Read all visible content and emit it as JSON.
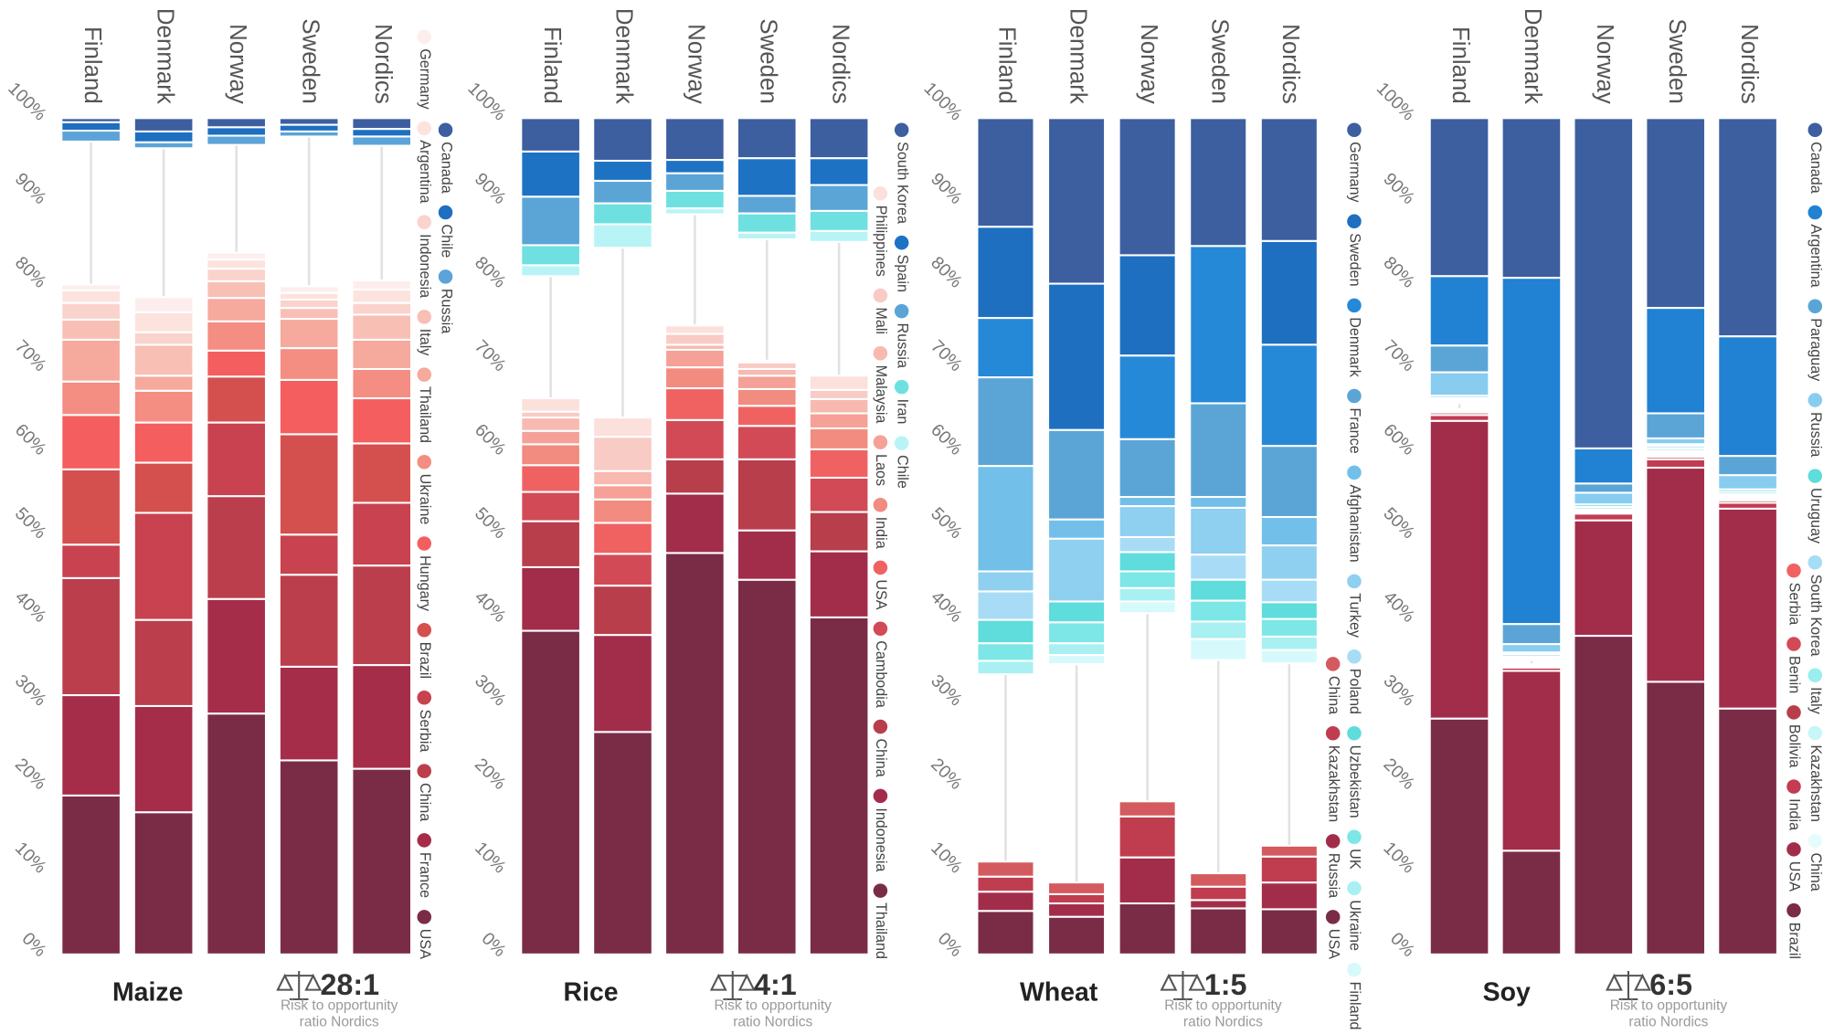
{
  "chart_data": [
    {
      "type": "bar",
      "stacked": true,
      "title": "Maize",
      "ratio": "28:1",
      "ratio_label_lines": [
        "Risk to opportunity",
        "ratio Nordics"
      ],
      "categories": [
        "Finland",
        "Denmark",
        "Norway",
        "Sweden",
        "Nordics"
      ],
      "ylim": [
        0,
        100
      ],
      "yticks": [
        {
          "value": 0,
          "label": "0%"
        },
        {
          "value": 10,
          "label": "10%"
        },
        {
          "value": 20,
          "label": "20%"
        },
        {
          "value": 30,
          "label": "30%"
        },
        {
          "value": 40,
          "label": "40%"
        },
        {
          "value": 50,
          "label": "50%"
        },
        {
          "value": 60,
          "label": "60%"
        },
        {
          "value": 70,
          "label": "70%"
        },
        {
          "value": 80,
          "label": "80%"
        },
        {
          "value": 90,
          "label": "90%"
        },
        {
          "value": 100,
          "label": "100%"
        }
      ],
      "series": [
        {
          "name": "Canada",
          "color": "#3d5fa0",
          "stack": "top",
          "values": [
            0.5,
            1.6,
            1.1,
            0.8,
            1.3
          ]
        },
        {
          "name": "Chile",
          "color": "#1e6fc0",
          "stack": "top",
          "values": [
            1,
            1.3,
            1,
            0.8,
            0.9
          ]
        },
        {
          "name": "Russia",
          "color": "#5ba3d8",
          "stack": "top",
          "values": [
            1.3,
            0.7,
            1.1,
            0.6,
            1.1
          ]
        },
        {
          "name": "Germany",
          "color": "#fdeeee",
          "stack": "bottom",
          "values": [
            0.7,
            1.8,
            0.8,
            0.8,
            1.1
          ]
        },
        {
          "name": "Argentina",
          "color": "#fce3de",
          "stack": "bottom",
          "values": [
            1.5,
            2.4,
            1.1,
            0.8,
            1.6
          ]
        },
        {
          "name": "Indonesia",
          "color": "#fad3cc",
          "stack": "bottom",
          "values": [
            2,
            1.5,
            1.5,
            1,
            1.4
          ]
        },
        {
          "name": "Italy",
          "color": "#f8bfb5",
          "stack": "bottom",
          "values": [
            2.4,
            3.7,
            2,
            1.3,
            3
          ]
        },
        {
          "name": "Thailand",
          "color": "#f6a99d",
          "stack": "bottom",
          "values": [
            5,
            1.8,
            2.8,
            3.5,
            3.5
          ]
        },
        {
          "name": "Ukraine",
          "color": "#f48d82",
          "stack": "bottom",
          "values": [
            4,
            3.8,
            3.5,
            3.8,
            3.5
          ]
        },
        {
          "name": "Hungary",
          "color": "#f45e5e",
          "stack": "bottom",
          "values": [
            6.5,
            4.8,
            3.1,
            6.5,
            5.4
          ]
        },
        {
          "name": "Brazil",
          "color": "#d4504f",
          "stack": "bottom",
          "values": [
            9,
            6,
            5.5,
            12,
            7.1
          ]
        },
        {
          "name": "Serbia",
          "color": "#c8424f",
          "stack": "bottom",
          "values": [
            4,
            12.8,
            8.8,
            4.8,
            7.5
          ]
        },
        {
          "name": "China",
          "color": "#bb3e4c",
          "stack": "bottom",
          "values": [
            14,
            10.3,
            12.3,
            11,
            11.9
          ]
        },
        {
          "name": "France",
          "color": "#a52d4a",
          "stack": "bottom",
          "values": [
            12,
            12.7,
            13.7,
            11.2,
            12.4
          ]
        },
        {
          "name": "USA",
          "color": "#7a2c47",
          "stack": "bottom",
          "values": [
            19,
            17,
            28.8,
            23.2,
            22.2
          ]
        }
      ]
    },
    {
      "type": "bar",
      "stacked": true,
      "title": "Rice",
      "ratio": "4:1",
      "ratio_label_lines": [
        "Risk to opportunity",
        "ratio Nordics"
      ],
      "categories": [
        "Finland",
        "Denmark",
        "Norway",
        "Sweden",
        "Nordics"
      ],
      "ylim": [
        0,
        100
      ],
      "yticks": [
        {
          "value": 0,
          "label": "0%"
        },
        {
          "value": 10,
          "label": "10%"
        },
        {
          "value": 20,
          "label": "20%"
        },
        {
          "value": 30,
          "label": "30%"
        },
        {
          "value": 40,
          "label": "40%"
        },
        {
          "value": 50,
          "label": "50%"
        },
        {
          "value": 60,
          "label": "60%"
        },
        {
          "value": 70,
          "label": "70%"
        },
        {
          "value": 80,
          "label": "80%"
        },
        {
          "value": 90,
          "label": "90%"
        },
        {
          "value": 100,
          "label": "100%"
        }
      ],
      "series": [
        {
          "name": "South Korea",
          "color": "#3d5fa0",
          "stack": "top",
          "values": [
            4,
            5.1,
            5,
            4.8,
            4.8
          ]
        },
        {
          "name": "Spain",
          "color": "#1e72c4",
          "stack": "top",
          "values": [
            5.4,
            2.4,
            1.6,
            4.5,
            3.2
          ]
        },
        {
          "name": "Russia",
          "color": "#5aa5d6",
          "stack": "top",
          "values": [
            5.8,
            2.7,
            2.1,
            2.1,
            3.1
          ]
        },
        {
          "name": "Iran",
          "color": "#6ee0e0",
          "stack": "top",
          "values": [
            2.4,
            2.5,
            2.1,
            2.3,
            2.4
          ]
        },
        {
          "name": "Chile",
          "color": "#b8f4f6",
          "stack": "top",
          "values": [
            1.3,
            2.8,
            0.7,
            0.8,
            1.3
          ]
        },
        {
          "name": "Philippines",
          "color": "#fbe0dc",
          "stack": "bottom",
          "values": [
            1.6,
            2.3,
            1,
            0.2,
            1.7
          ]
        },
        {
          "name": "Mali",
          "color": "#f9cbc5",
          "stack": "bottom",
          "values": [
            0.7,
            4.1,
            1.3,
            0.8,
            1.1
          ]
        },
        {
          "name": "Malaysia",
          "color": "#f7b9b0",
          "stack": "bottom",
          "values": [
            1.6,
            1.7,
            0.6,
            0.8,
            1.7
          ]
        },
        {
          "name": "Laos",
          "color": "#f5a197",
          "stack": "bottom",
          "values": [
            1.6,
            1.7,
            2.1,
            1.6,
            1.8
          ]
        },
        {
          "name": "India",
          "color": "#f28b80",
          "stack": "bottom",
          "values": [
            2.5,
            2.8,
            2.5,
            2,
            2.5
          ]
        },
        {
          "name": "USA",
          "color": "#f06262",
          "stack": "bottom",
          "values": [
            3.2,
            3.7,
            3.8,
            2.4,
            3.4
          ]
        },
        {
          "name": "Cambodia",
          "color": "#d24a55",
          "stack": "bottom",
          "values": [
            3.5,
            3.8,
            4.7,
            4,
            4.1
          ]
        },
        {
          "name": "China",
          "color": "#b83e4b",
          "stack": "bottom",
          "values": [
            5.5,
            5.9,
            4.1,
            8.5,
            4.7
          ]
        },
        {
          "name": "Indonesia",
          "color": "#a22d4a",
          "stack": "bottom",
          "values": [
            7.6,
            11.6,
            7.1,
            5.9,
            7.9
          ]
        },
        {
          "name": "Thailand",
          "color": "#7a2c47",
          "stack": "bottom",
          "values": [
            38.7,
            26.6,
            48,
            44.8,
            40.3
          ]
        }
      ]
    },
    {
      "type": "bar",
      "stacked": true,
      "title": "Wheat",
      "ratio": "1:5",
      "ratio_label_lines": [
        "Risk to opportunity",
        "ratio Nordics"
      ],
      "categories": [
        "Finland",
        "Denmark",
        "Norway",
        "Sweden",
        "Nordics"
      ],
      "ylim": [
        0,
        100
      ],
      "yticks": [
        {
          "value": 0,
          "label": "0%"
        },
        {
          "value": 10,
          "label": "10%"
        },
        {
          "value": 20,
          "label": "20%"
        },
        {
          "value": 30,
          "label": "30%"
        },
        {
          "value": 40,
          "label": "40%"
        },
        {
          "value": 50,
          "label": "50%"
        },
        {
          "value": 60,
          "label": "60%"
        },
        {
          "value": 70,
          "label": "70%"
        },
        {
          "value": 80,
          "label": "80%"
        },
        {
          "value": 90,
          "label": "90%"
        },
        {
          "value": 100,
          "label": "100%"
        }
      ],
      "series": [
        {
          "name": "Germany",
          "color": "#3d5fa0",
          "stack": "top",
          "values": [
            13,
            19.8,
            16.4,
            15.3,
            14.7
          ]
        },
        {
          "name": "Sweden",
          "color": "#1e6fc0",
          "stack": "top",
          "values": [
            10.9,
            17.5,
            12,
            0,
            12.4
          ]
        },
        {
          "name": "Denmark",
          "color": "#2589d8",
          "stack": "top",
          "values": [
            7.1,
            0,
            10,
            18.8,
            12.1
          ]
        },
        {
          "name": "France",
          "color": "#5ba5d6",
          "stack": "top",
          "values": [
            10.6,
            10.7,
            6.9,
            11.2,
            8.5
          ]
        },
        {
          "name": "Afghanistan",
          "color": "#72bfe9",
          "stack": "top",
          "values": [
            12.6,
            2.3,
            1.1,
            1.3,
            3.4
          ]
        },
        {
          "name": "Turkey",
          "color": "#8fcff0",
          "stack": "top",
          "values": [
            2.4,
            7.5,
            3.7,
            5.6,
            4.1
          ]
        },
        {
          "name": "Poland",
          "color": "#a8dcf6",
          "stack": "top",
          "values": [
            3.4,
            0,
            1.8,
            3,
            2.7
          ]
        },
        {
          "name": "Uzbekistan",
          "color": "#5fdcdc",
          "stack": "top",
          "values": [
            2.8,
            2.5,
            2.3,
            2.5,
            2
          ]
        },
        {
          "name": "UK",
          "color": "#7de6e6",
          "stack": "top",
          "values": [
            2.1,
            2.5,
            2,
            2.5,
            2.1
          ]
        },
        {
          "name": "Ukraine",
          "color": "#a9f0f2",
          "stack": "top",
          "values": [
            1.6,
            1.4,
            1.6,
            2.1,
            1.6
          ]
        },
        {
          "name": "Finland",
          "color": "#d6fafb",
          "stack": "top",
          "values": [
            0,
            1.1,
            1.4,
            2.5,
            1.6
          ]
        },
        {
          "name": "China",
          "color": "#d35a5e",
          "stack": "bottom",
          "values": [
            1.8,
            1.4,
            1.8,
            1.6,
            1.3
          ]
        },
        {
          "name": "Kazakhstan",
          "color": "#c03d4f",
          "stack": "bottom",
          "values": [
            1.8,
            1.1,
            4.9,
            1.6,
            3.1
          ]
        },
        {
          "name": "Russia",
          "color": "#a22d4a",
          "stack": "bottom",
          "values": [
            2.3,
            1.6,
            5.5,
            1,
            3.2
          ]
        },
        {
          "name": "USA",
          "color": "#7a2c47",
          "stack": "bottom",
          "values": [
            5.2,
            4.5,
            6.1,
            5.5,
            5.4
          ]
        }
      ]
    },
    {
      "type": "bar",
      "stacked": true,
      "title": "Soy",
      "ratio": "6:5",
      "ratio_label_lines": [
        "Risk to opportunity",
        "ratio Nordics"
      ],
      "categories": [
        "Finland",
        "Denmark",
        "Norway",
        "Sweden",
        "Nordics"
      ],
      "ylim": [
        0,
        100
      ],
      "yticks": [
        {
          "value": 0,
          "label": "0%"
        },
        {
          "value": 10,
          "label": "10%"
        },
        {
          "value": 20,
          "label": "20%"
        },
        {
          "value": 30,
          "label": "30%"
        },
        {
          "value": 40,
          "label": "40%"
        },
        {
          "value": 50,
          "label": "50%"
        },
        {
          "value": 60,
          "label": "60%"
        },
        {
          "value": 70,
          "label": "70%"
        },
        {
          "value": 80,
          "label": "80%"
        },
        {
          "value": 90,
          "label": "90%"
        },
        {
          "value": 100,
          "label": "100%"
        }
      ],
      "series": [
        {
          "name": "Canada",
          "color": "#3d5fa0",
          "stack": "top",
          "values": [
            18.9,
            19.1,
            39.5,
            22.7,
            26.1
          ]
        },
        {
          "name": "Argentina",
          "color": "#2181d2",
          "stack": "top",
          "values": [
            8.3,
            41.4,
            4.2,
            12.6,
            14.3
          ]
        },
        {
          "name": "Paraguay",
          "color": "#5ba5d6",
          "stack": "top",
          "values": [
            3.2,
            2.4,
            1.1,
            3,
            2.3
          ]
        },
        {
          "name": "Russia",
          "color": "#88ccf0",
          "stack": "top",
          "values": [
            2.8,
            1,
            1.4,
            0.7,
            1.7
          ]
        },
        {
          "name": "Uruguay",
          "color": "#5fdcdc",
          "stack": "top",
          "values": [
            0,
            0.2,
            0.3,
            0.2,
            0.3
          ]
        },
        {
          "name": "South Korea",
          "color": "#a5dcf6",
          "stack": "top",
          "values": [
            0.3,
            0.3,
            0.3,
            0.3,
            0.3
          ]
        },
        {
          "name": "Italy",
          "color": "#9aeeee",
          "stack": "top",
          "values": [
            0.2,
            0.2,
            0.2,
            0.3,
            0.2
          ]
        },
        {
          "name": "Kazakhstan",
          "color": "#c8f6f6",
          "stack": "top",
          "values": [
            0.2,
            0.1,
            0.2,
            0.2,
            0.2
          ]
        },
        {
          "name": "China",
          "color": "#e6fcfc",
          "stack": "top",
          "values": [
            0.2,
            0.1,
            0.1,
            0.1,
            0.2
          ]
        },
        {
          "name": "Serbia",
          "color": "#f06262",
          "stack": "bottom",
          "values": [
            0.2,
            0.1,
            0.2,
            0.2,
            0.2
          ]
        },
        {
          "name": "Benin",
          "color": "#d24a55",
          "stack": "bottom",
          "values": [
            0.2,
            0.1,
            0.2,
            0.2,
            0.2
          ]
        },
        {
          "name": "Bolivia",
          "color": "#b83e4b",
          "stack": "bottom",
          "values": [
            0.3,
            0.2,
            0.3,
            0.3,
            0.3
          ]
        },
        {
          "name": "India",
          "color": "#c23c52",
          "stack": "bottom",
          "values": [
            0.7,
            0.4,
            1.1,
            1,
            0.7
          ]
        },
        {
          "name": "USA",
          "color": "#a22d4a",
          "stack": "bottom",
          "values": [
            35.6,
            21.5,
            13.8,
            25.6,
            23.9
          ]
        },
        {
          "name": "Brazil",
          "color": "#7a2c47",
          "stack": "bottom",
          "values": [
            28.2,
            12.4,
            38.1,
            32.6,
            29.4
          ]
        }
      ]
    }
  ]
}
